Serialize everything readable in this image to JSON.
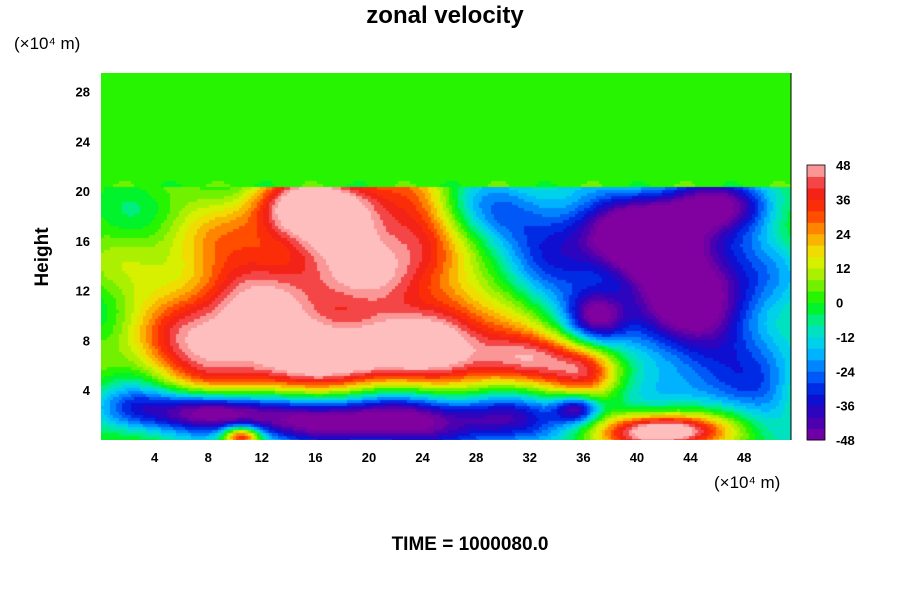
{
  "chart_data": {
    "type": "heatmap",
    "title": "zonal velocity",
    "xlabel": "",
    "ylabel": "Height",
    "x_unit": "(×10⁴ m)",
    "y_unit": "(×10⁴ m)",
    "xlim": [
      0,
      51.5
    ],
    "ylim": [
      0,
      29.5
    ],
    "xticks": [
      4,
      8,
      12,
      16,
      20,
      24,
      28,
      32,
      36,
      40,
      44,
      48
    ],
    "yticks": [
      4,
      8,
      12,
      16,
      20,
      24,
      28
    ],
    "colorbar": {
      "min": -48,
      "max": 48,
      "step": 4,
      "ticks": [
        48,
        36,
        24,
        12,
        0,
        -12,
        -24,
        -36,
        -48
      ]
    },
    "background_above_height": 20.3,
    "background_value": 2,
    "features": [
      {
        "x": 11,
        "y": 10,
        "sx": 5,
        "sy": 5,
        "v": 44
      },
      {
        "x": 7,
        "y": 7,
        "sx": 3,
        "sy": 2.5,
        "v": 14
      },
      {
        "x": 22,
        "y": 7,
        "sx": 7,
        "sy": 2.2,
        "v": 56
      },
      {
        "x": 32,
        "y": 6.5,
        "sx": 3,
        "sy": 1.5,
        "v": 30
      },
      {
        "x": 36.5,
        "y": 5.5,
        "sx": 1.8,
        "sy": 1.5,
        "v": 28
      },
      {
        "x": 18,
        "y": 18,
        "sx": 4,
        "sy": 2.5,
        "v": 50
      },
      {
        "x": 15,
        "y": 19,
        "sx": 2.5,
        "sy": 1.5,
        "v": 20
      },
      {
        "x": 21,
        "y": 13,
        "sx": 4,
        "sy": 2.5,
        "v": 32
      },
      {
        "x": 24,
        "y": 17,
        "sx": 2,
        "sy": 3,
        "v": 18
      },
      {
        "x": 44,
        "y": 11.5,
        "sx": 4,
        "sy": 4.5,
        "v": -56
      },
      {
        "x": 40,
        "y": 16.5,
        "sx": 3.5,
        "sy": 2.5,
        "v": -48
      },
      {
        "x": 46,
        "y": 19,
        "sx": 3,
        "sy": 1.5,
        "v": -30
      },
      {
        "x": 30,
        "y": 18,
        "sx": 3.5,
        "sy": 2,
        "v": -22
      },
      {
        "x": 34,
        "y": 14,
        "sx": 2.5,
        "sy": 3.5,
        "v": -18
      },
      {
        "x": 37,
        "y": 10,
        "sx": 1.5,
        "sy": 1.5,
        "v": -35
      },
      {
        "x": 50,
        "y": 5,
        "sx": 2,
        "sy": 3,
        "v": -12
      },
      {
        "x": 8.5,
        "y": 2.3,
        "sx": 3.5,
        "sy": 1.2,
        "v": -62
      },
      {
        "x": 20,
        "y": 1.5,
        "sx": 6,
        "sy": 1.6,
        "v": -62
      },
      {
        "x": 2,
        "y": 2.5,
        "sx": 2,
        "sy": 1.5,
        "v": -25
      },
      {
        "x": 30,
        "y": 2,
        "sx": 3,
        "sy": 1.5,
        "v": -30
      },
      {
        "x": 35.5,
        "y": 2.5,
        "sx": 1.2,
        "sy": 0.8,
        "v": -40
      },
      {
        "x": 42,
        "y": 0.7,
        "sx": 3,
        "sy": 1,
        "v": 65
      },
      {
        "x": 10.5,
        "y": 0.3,
        "sx": 1,
        "sy": 0.6,
        "v": 50
      },
      {
        "x": 47,
        "y": 3.5,
        "sx": 3,
        "sy": 1.5,
        "v": -10
      },
      {
        "x": 26,
        "y": 10.5,
        "sx": 2,
        "sy": 2,
        "v": 15
      }
    ],
    "footer": "TIME = 1000080.0"
  }
}
